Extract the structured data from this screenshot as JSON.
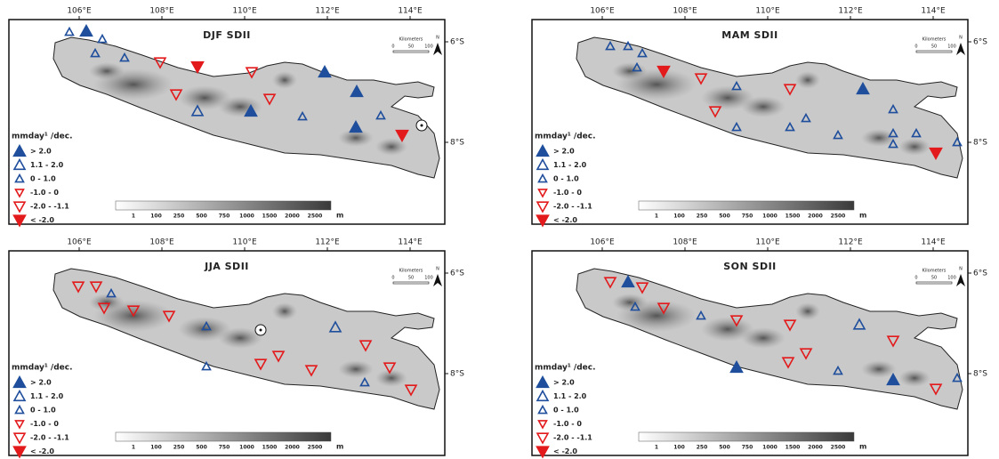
{
  "panels": [
    {
      "title": "DJF SDII"
    },
    {
      "title": "MAM SDII"
    },
    {
      "title": "JJA SDII"
    },
    {
      "title": "SON SDII"
    }
  ],
  "longitudes": [
    "106°E",
    "108°E",
    "110°E",
    "112°E",
    "114°E"
  ],
  "latitudes": [
    "6°S",
    "8°S"
  ],
  "legend": {
    "title": "mmday¹ /dec.",
    "items": [
      "> 2.0",
      "1.1 - 2.0",
      "0 - 1.0",
      "-1.0 - 0",
      "-2.0 - -1.1",
      "< -2.0"
    ]
  },
  "colorbar": {
    "ticks": [
      "1",
      "100",
      "250",
      "500",
      "750",
      "1000",
      "1500",
      "2000",
      "2500"
    ],
    "unit": "m"
  },
  "scale": {
    "title": "Kilometers",
    "ticks": [
      "0",
      "50",
      "100"
    ],
    "north": "N"
  }
}
